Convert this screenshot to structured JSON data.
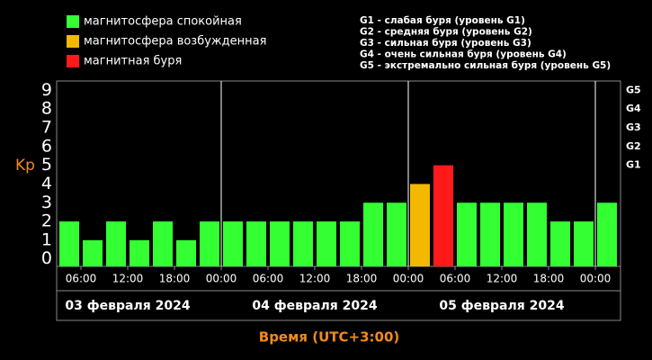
{
  "chart_data": {
    "type": "bar",
    "legend": [
      {
        "label": "магнитосфера спокойная",
        "color": "#33ff33"
      },
      {
        "label": "магнитосфера возбужденная",
        "color": "#f5b800"
      },
      {
        "label": "магнитная буря",
        "color": "#ff1a1a"
      }
    ],
    "notes": [
      "G1 - слабая буря (уровень G1)",
      "G2 - средняя буря (уровень G2)",
      "G3 - сильная буря (уровень G3)",
      "G4 - очень сильная буря (уровень G4)",
      "G5 - экстремально сильная буря (уровень G5)"
    ],
    "ylabel": "Kp",
    "xlabel": "Время (UTC+3:00)",
    "categories": [
      null,
      null,
      null,
      null,
      null,
      null,
      null,
      null,
      null,
      null,
      null,
      null,
      null,
      null,
      null,
      null,
      null,
      null,
      null,
      null,
      null,
      null,
      null,
      null
    ],
    "values": [
      2,
      1,
      2,
      1,
      2,
      1,
      2,
      2,
      2,
      2,
      2,
      2,
      2,
      3,
      3,
      4,
      5,
      3,
      3,
      3,
      3,
      2,
      2,
      3
    ],
    "colors": [
      "#33ff33",
      "#33ff33",
      "#33ff33",
      "#33ff33",
      "#33ff33",
      "#33ff33",
      "#33ff33",
      "#33ff33",
      "#33ff33",
      "#33ff33",
      "#33ff33",
      "#33ff33",
      "#33ff33",
      "#33ff33",
      "#33ff33",
      "#f5b800",
      "#ff1a1a",
      "#33ff33",
      "#33ff33",
      "#33ff33",
      "#33ff33",
      "#33ff33",
      "#33ff33",
      "#33ff33"
    ],
    "xticks": [
      {
        "value": 1,
        "label": "06:00"
      },
      {
        "value": 3,
        "label": "12:00"
      },
      {
        "value": 5,
        "label": "18:00"
      },
      {
        "value": 7,
        "label": "00:00"
      },
      {
        "value": 9,
        "label": "06:00"
      },
      {
        "value": 11,
        "label": "12:00"
      },
      {
        "value": 13,
        "label": "18:00"
      },
      {
        "value": 15,
        "label": "00:00"
      },
      {
        "value": 17,
        "label": "06:00"
      },
      {
        "value": 19,
        "label": "12:00"
      },
      {
        "value": 21,
        "label": "18:00"
      },
      {
        "value": 23,
        "label": "00:00"
      }
    ],
    "days": [
      {
        "label": "03 февраля 2024",
        "start": -1
      },
      {
        "label": "04 февраля 2024",
        "start": 7
      },
      {
        "label": "05 февраля 2024",
        "start": 15
      }
    ],
    "ylim": [
      -0.4,
      9.5
    ],
    "yticks": [
      0,
      1,
      2,
      3,
      4,
      5,
      6,
      7,
      8,
      9
    ],
    "y2lim": [
      -0.4,
      9.5
    ],
    "y2ticks": [
      {
        "value": 5,
        "label": "G1"
      },
      {
        "value": 6,
        "label": "G2"
      },
      {
        "value": 7,
        "label": "G3"
      },
      {
        "value": 8,
        "label": "G4"
      },
      {
        "value": 9,
        "label": "G5"
      }
    ]
  }
}
